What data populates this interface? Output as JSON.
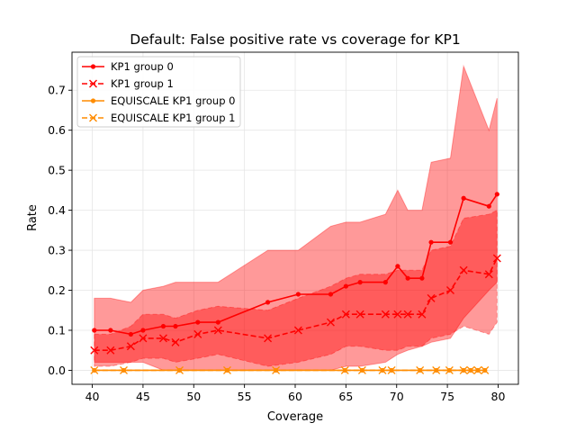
{
  "chart_data": {
    "type": "line",
    "title": "Default: False positive rate vs coverage for KP1",
    "xlabel": "Coverage",
    "ylabel": "Rate",
    "xlim": [
      38.0,
      82.0
    ],
    "ylim": [
      -0.035,
      0.795
    ],
    "xticks": [
      40,
      45,
      50,
      55,
      60,
      65,
      70,
      75,
      80
    ],
    "yticks": [
      0.0,
      0.1,
      0.2,
      0.3,
      0.4,
      0.5,
      0.6,
      0.7
    ],
    "grid": true,
    "legend_position": "upper-left",
    "series": [
      {
        "name": "KP1 group 0",
        "color": "#ff0000",
        "linestyle": "solid",
        "marker": "dot",
        "x": [
          40.2,
          41.8,
          43.8,
          45.0,
          47.0,
          48.2,
          50.4,
          52.4,
          57.3,
          60.3,
          63.5,
          65.0,
          66.4,
          68.9,
          70.1,
          71.1,
          72.5,
          73.4,
          75.3,
          76.6,
          79.1,
          79.9
        ],
        "y": [
          0.1,
          0.1,
          0.09,
          0.1,
          0.11,
          0.11,
          0.12,
          0.12,
          0.17,
          0.19,
          0.19,
          0.21,
          0.22,
          0.22,
          0.26,
          0.23,
          0.23,
          0.32,
          0.32,
          0.43,
          0.41,
          0.44
        ],
        "band_low": [
          0.02,
          0.02,
          0.02,
          0.02,
          0.0,
          0.0,
          0.0,
          0.0,
          0.0,
          0.0,
          0.0,
          0.01,
          0.01,
          0.02,
          0.04,
          0.05,
          0.06,
          0.07,
          0.08,
          0.13,
          0.2,
          0.22
        ],
        "band_high": [
          0.18,
          0.18,
          0.17,
          0.2,
          0.21,
          0.22,
          0.22,
          0.22,
          0.3,
          0.3,
          0.36,
          0.37,
          0.37,
          0.39,
          0.45,
          0.4,
          0.4,
          0.52,
          0.53,
          0.76,
          0.6,
          0.68
        ]
      },
      {
        "name": "KP1 group 1",
        "color": "#ff0000",
        "linestyle": "dashed",
        "marker": "x",
        "x": [
          40.2,
          41.8,
          43.8,
          45.0,
          47.0,
          48.2,
          50.4,
          52.4,
          57.3,
          60.3,
          63.5,
          65.0,
          66.4,
          68.9,
          70.1,
          71.1,
          72.5,
          73.4,
          75.3,
          76.6,
          79.1,
          79.9
        ],
        "y": [
          0.05,
          0.05,
          0.06,
          0.08,
          0.08,
          0.07,
          0.09,
          0.1,
          0.08,
          0.1,
          0.12,
          0.14,
          0.14,
          0.14,
          0.14,
          0.14,
          0.14,
          0.18,
          0.2,
          0.25,
          0.24,
          0.28
        ],
        "band_low": [
          0.01,
          0.01,
          0.02,
          0.03,
          0.03,
          0.02,
          0.03,
          0.04,
          0.01,
          0.02,
          0.04,
          0.06,
          0.06,
          0.05,
          0.05,
          0.06,
          0.06,
          0.08,
          0.09,
          0.11,
          0.09,
          0.12
        ],
        "band_high": [
          0.09,
          0.09,
          0.11,
          0.14,
          0.14,
          0.13,
          0.15,
          0.16,
          0.15,
          0.18,
          0.21,
          0.23,
          0.24,
          0.24,
          0.25,
          0.25,
          0.25,
          0.3,
          0.31,
          0.38,
          0.39,
          0.4
        ]
      },
      {
        "name": "EQUISCALE KP1 group 0",
        "color": "#ff8c00",
        "linestyle": "solid",
        "marker": "dot",
        "x": [
          40.2,
          43.1,
          48.6,
          53.3,
          58.1,
          64.9,
          66.6,
          68.6,
          69.5,
          72.3,
          73.9,
          75.2,
          76.6,
          77.3,
          78.0,
          78.7
        ],
        "y": [
          0.0,
          0.0,
          0.0,
          0.0,
          0.0,
          0.0,
          0.0,
          0.0,
          0.0,
          0.0,
          0.0,
          0.0,
          0.0,
          0.0,
          0.0,
          0.0
        ]
      },
      {
        "name": "EQUISCALE KP1 group 1",
        "color": "#ff8c00",
        "linestyle": "dashed",
        "marker": "x",
        "x": [
          40.2,
          43.1,
          48.6,
          53.3,
          58.1,
          64.9,
          66.6,
          68.6,
          69.5,
          72.3,
          73.9,
          75.2,
          76.6,
          77.3,
          78.0,
          78.7
        ],
        "y": [
          0.0,
          0.0,
          0.0,
          0.0,
          0.0,
          0.0,
          0.0,
          0.0,
          0.0,
          0.0,
          0.0,
          0.0,
          0.0,
          0.0,
          0.0,
          0.0
        ]
      }
    ]
  }
}
